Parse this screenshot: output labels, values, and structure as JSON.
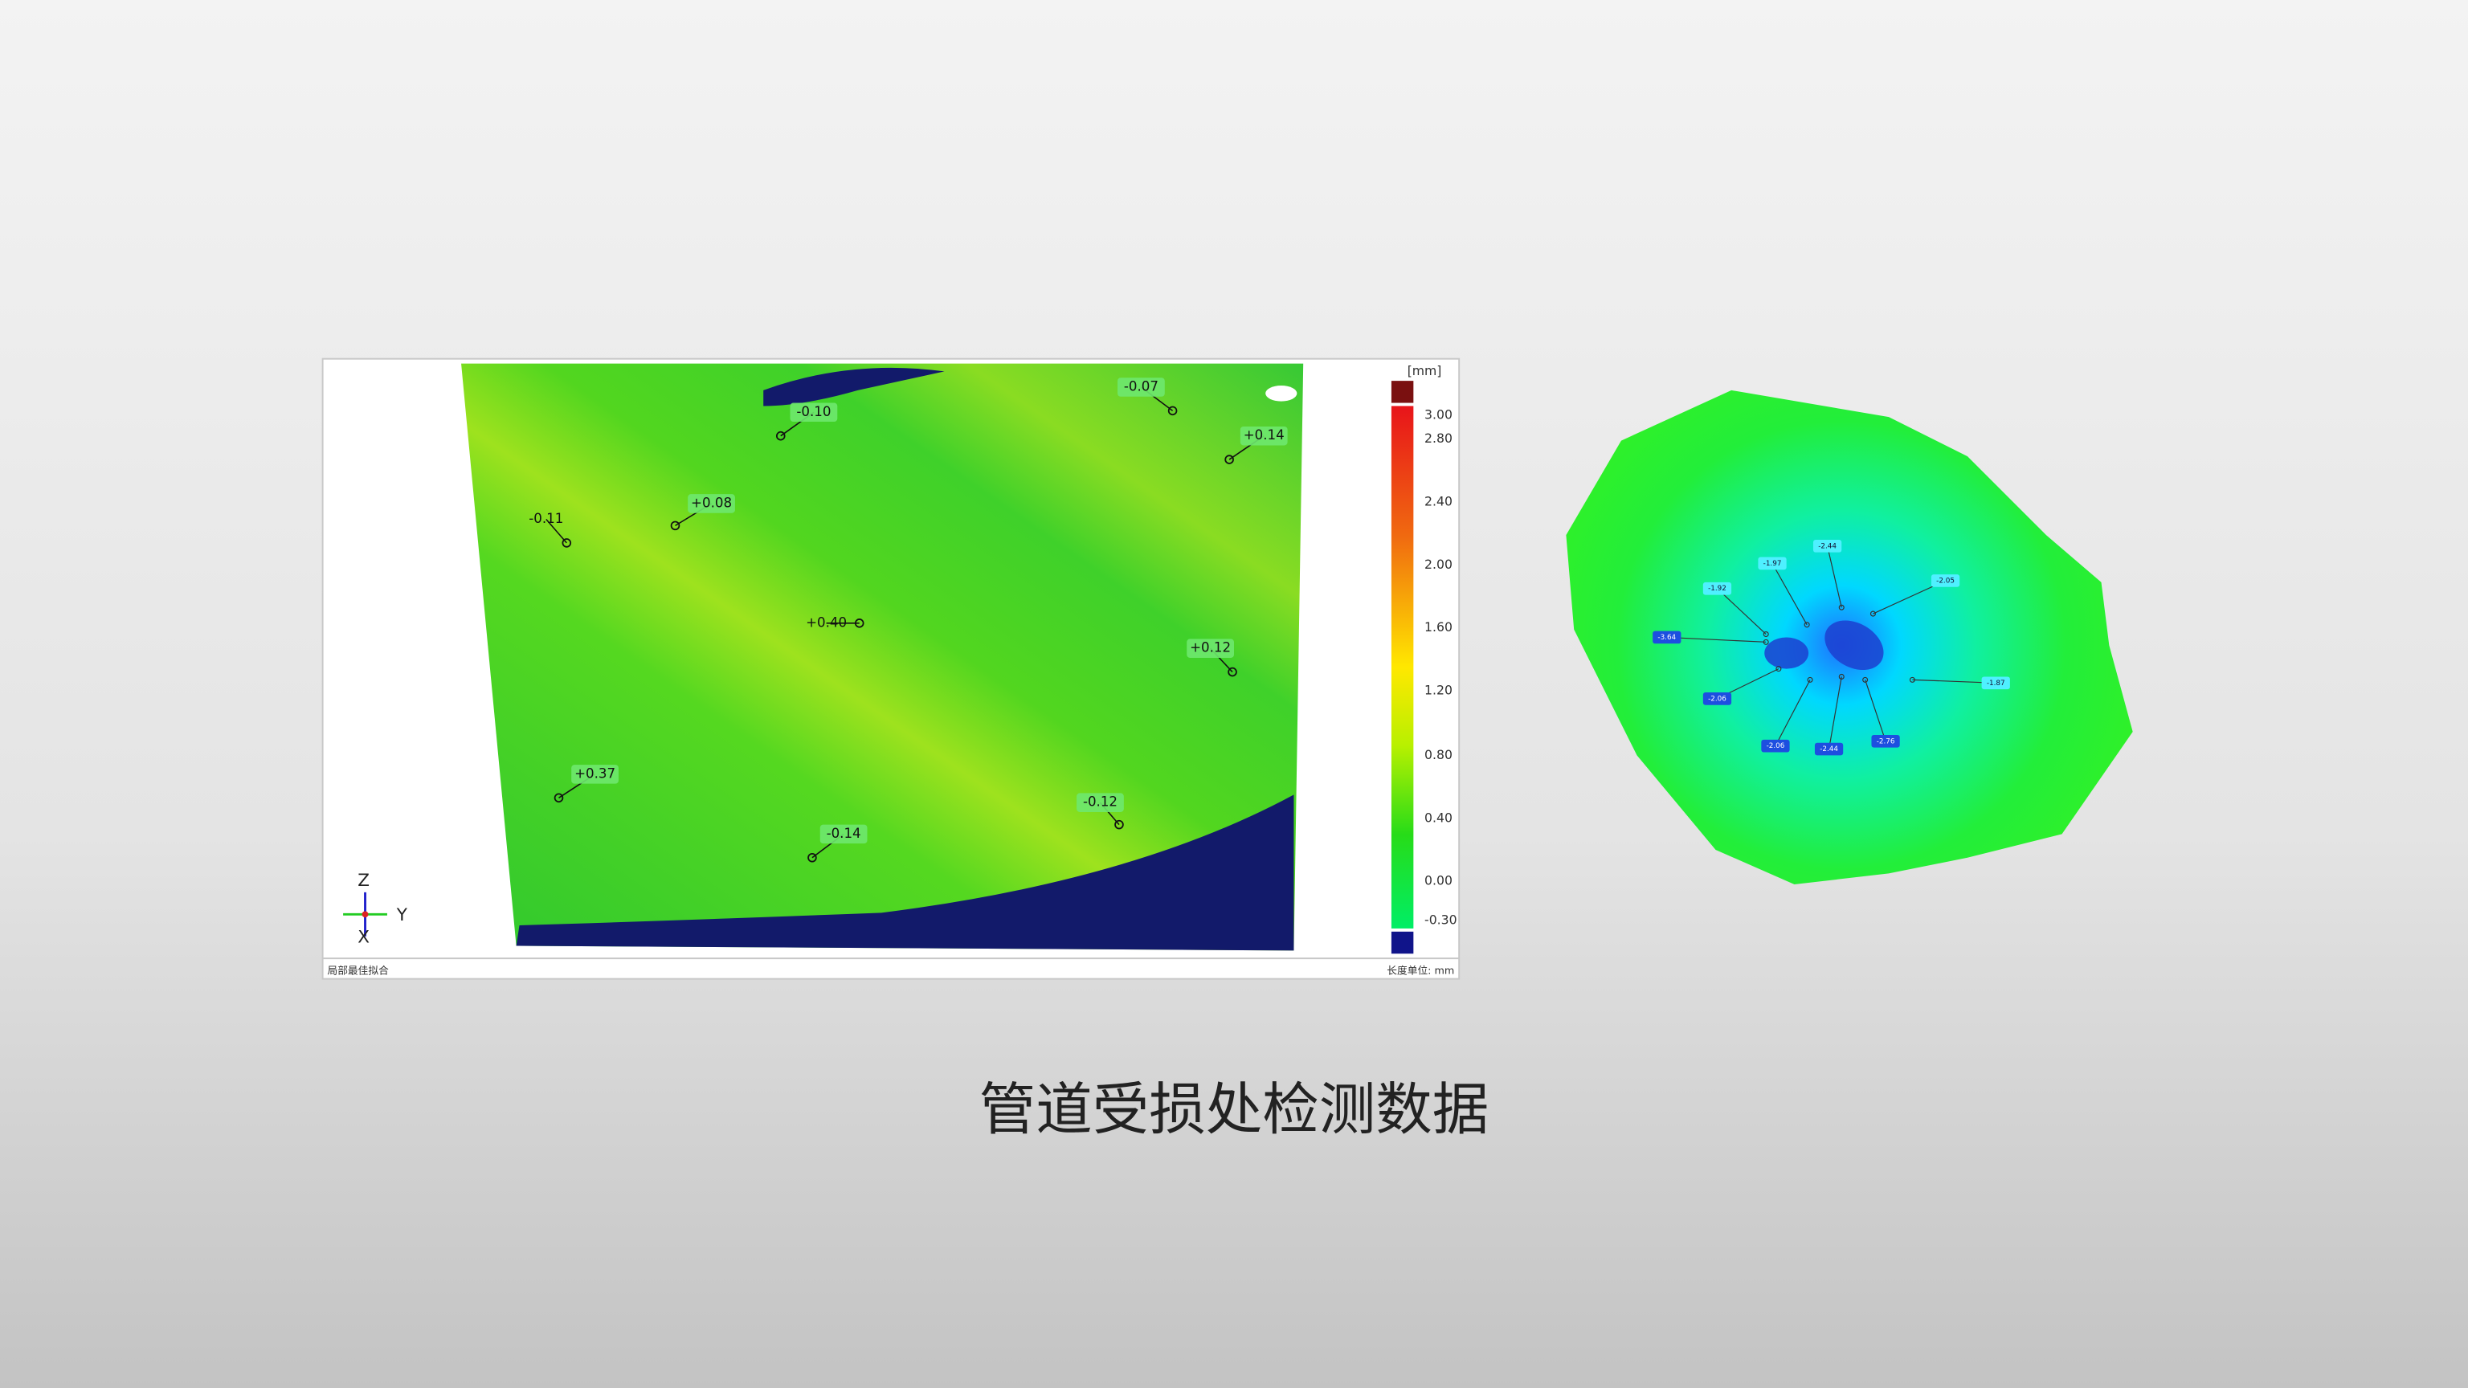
{
  "left_panel": {
    "unit": "[mm]",
    "scale_labels": [
      "3.00",
      "2.80",
      "2.40",
      "2.00",
      "1.60",
      "1.20",
      "0.80",
      "0.40",
      "0.00",
      "-0.30"
    ],
    "annotations": [
      "-0.10",
      "-0.07",
      "+0.14",
      "+0.08",
      "-0.11",
      "+0.40",
      "+0.12",
      "+0.37",
      "-0.14",
      "-0.12"
    ],
    "axes": {
      "z": "Z",
      "y": "Y",
      "x": "X"
    },
    "footer_left": "局部最佳拟合",
    "footer_right": "长度单位: mm"
  },
  "right_panel": {
    "annotations": [
      "-1.97",
      "-2.44",
      "-2.05",
      "-1.92",
      "-3.64",
      "-2.06",
      "-2.06",
      "-2.44",
      "-2.76",
      "-1.87"
    ]
  },
  "caption": "管道受损处检测数据"
}
